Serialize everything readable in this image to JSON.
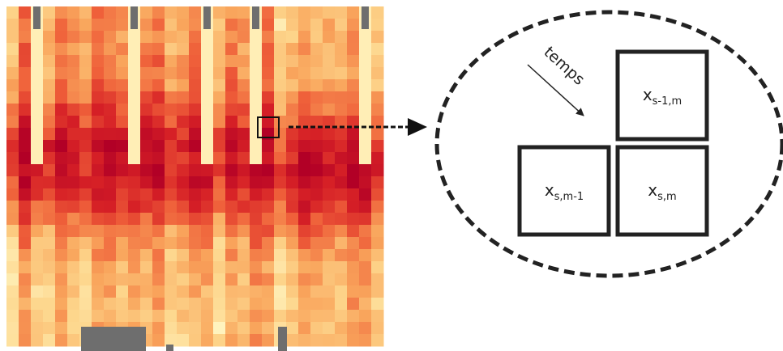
{
  "time_label": "temps",
  "cells": [
    {
      "symbol": "x",
      "subscript": "s-1,m"
    },
    {
      "symbol": "x",
      "subscript": "s,m-1"
    },
    {
      "symbol": "x",
      "subscript": "s,m"
    }
  ]
}
